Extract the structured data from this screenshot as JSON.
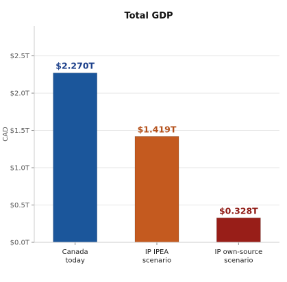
{
  "chart_data": {
    "type": "bar",
    "title": "Total GDP",
    "xlabel": "",
    "ylabel": "CAD",
    "categories": [
      [
        "Canada",
        "today"
      ],
      [
        "IP IPEA",
        "scenario"
      ],
      [
        "IP own-source",
        "scenario"
      ]
    ],
    "values": [
      2.27,
      1.419,
      0.328
    ],
    "value_labels": [
      "$2.270T",
      "$1.419T",
      "$0.328T"
    ],
    "colors": [
      "#1b569b",
      "#c45a1f",
      "#981e18"
    ],
    "label_colors": [
      "#1b3f8a",
      "#b4501a",
      "#8f1a14"
    ],
    "ylim": [
      0,
      2.9
    ],
    "yticks": [
      0,
      0.5,
      1.0,
      1.5,
      2.0,
      2.5
    ],
    "ytick_labels": [
      "$0.0T",
      "$0.5T",
      "$1.0T",
      "$1.5T",
      "$2.0T",
      "$2.5T"
    ],
    "grid": "horizontal",
    "legend": "none"
  }
}
